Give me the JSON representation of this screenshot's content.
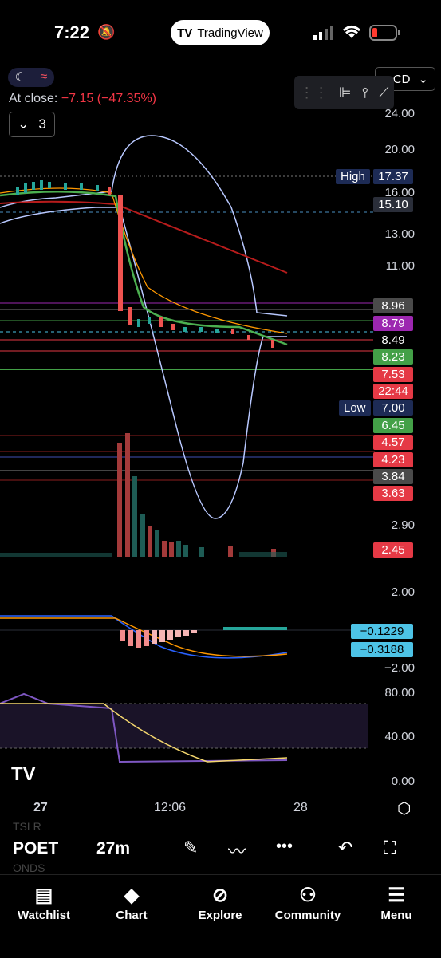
{
  "status_bar": {
    "time": "7:22",
    "bell_icon": "bell-slash-icon",
    "app_pill": "TradingView"
  },
  "header": {
    "at_close_label": "At close:",
    "at_close_change": "−7.15 (−47.35%)",
    "collapse_count": "3",
    "currency_label": "CD"
  },
  "price_axis": [
    "24.00",
    "20.00",
    "16.00",
    "13.00",
    "11.00",
    "2.90",
    "2.00",
    "−2.00",
    "80.00",
    "40.00",
    "0.00"
  ],
  "price_tags": [
    {
      "label": "High",
      "value": "17.37",
      "bg": "#1d2b55"
    },
    {
      "value": "15.10",
      "bg": "#2a2e39"
    },
    {
      "value": "8.96",
      "bg": "#4a4a4a"
    },
    {
      "value": "8.79",
      "bg": "#9c27b0"
    },
    {
      "value": "8.49",
      "bg": "#000000"
    },
    {
      "value": "8.23",
      "bg": "#43a047"
    },
    {
      "value": "7.53",
      "bg": "#e53945"
    },
    {
      "value": "22:44",
      "bg": "#e53945"
    },
    {
      "label": "Low",
      "value": "7.00",
      "bg": "#1d2b55"
    },
    {
      "value": "6.45",
      "bg": "#43a047"
    },
    {
      "value": "4.57",
      "bg": "#e53945"
    },
    {
      "value": "4.23",
      "bg": "#e53945"
    },
    {
      "value": "3.84",
      "bg": "#4a4a4a"
    },
    {
      "value": "3.63",
      "bg": "#e53945"
    },
    {
      "value": "2.45",
      "bg": "#e53945"
    },
    {
      "value": "−0.1229",
      "bg": "#4dc3e6"
    },
    {
      "value": "−0.3188",
      "bg": "#4dc3e6"
    }
  ],
  "time_axis": {
    "left": "27",
    "mid": "12:06",
    "right": "28"
  },
  "toolbar": {
    "watch_prev": "TSLR",
    "symbol": "POET",
    "watch_next": "ONDS",
    "interval": "27m"
  },
  "tabs": [
    {
      "label": "Watchlist",
      "icon": "list-doc-icon"
    },
    {
      "label": "Chart",
      "icon": "chart-icon"
    },
    {
      "label": "Explore",
      "icon": "compass-icon"
    },
    {
      "label": "Community",
      "icon": "people-icon"
    },
    {
      "label": "Menu",
      "icon": "hamburger-icon"
    }
  ],
  "colors": {
    "up": "#26a69a",
    "down": "#ef5350",
    "bollinger": "#b8c8ff",
    "ma_green": "#4caf50",
    "ma_orange": "#ff9800",
    "ma_red": "#b71c1c"
  }
}
